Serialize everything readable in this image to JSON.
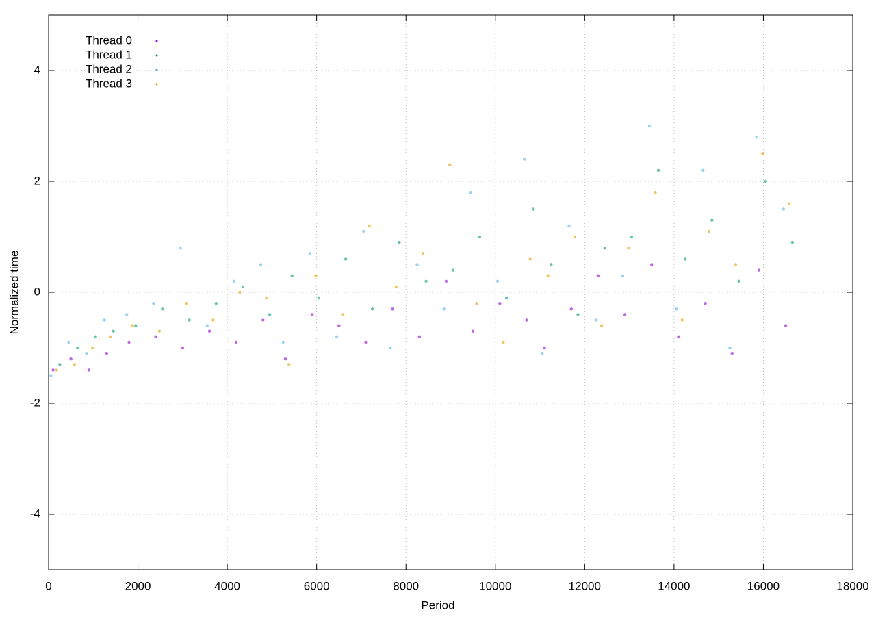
{
  "chart_data": {
    "type": "scatter",
    "x_label": "Period",
    "y_label": "Normalized time",
    "xlim": [
      0,
      18000
    ],
    "xticks": [
      0,
      2000,
      4000,
      6000,
      8000,
      10000,
      12000,
      14000,
      16000,
      18000
    ],
    "ylim": [
      -5,
      5
    ],
    "yticks": [
      -4,
      -2,
      0,
      2,
      4
    ],
    "grid": true,
    "legend": "top-left",
    "series": [
      {
        "name": "Thread 0",
        "color": "#9400d3",
        "x": [
          100,
          500,
          900,
          1300,
          1800,
          2400,
          3000,
          3600,
          4200,
          4800,
          5300,
          5900,
          6500,
          7100,
          7700,
          8300,
          8900,
          9500,
          10100,
          10700,
          11100,
          11700,
          12300,
          12900,
          13500,
          14100,
          14700,
          15300,
          15900,
          16500
        ],
        "values": [
          -1.4,
          -1.2,
          -1.4,
          -1.1,
          -0.9,
          -0.8,
          -1.0,
          -0.7,
          -0.9,
          -0.5,
          -1.2,
          -0.4,
          -0.6,
          -0.9,
          -0.3,
          -0.8,
          0.2,
          -0.7,
          -0.2,
          -0.5,
          -1.0,
          -0.3,
          0.3,
          -0.4,
          0.5,
          -0.8,
          -0.2,
          -1.1,
          0.4,
          -0.6
        ]
      },
      {
        "name": "Thread 1",
        "color": "#009e73",
        "x": [
          250,
          650,
          1050,
          1450,
          1950,
          2550,
          3150,
          3750,
          4350,
          4950,
          5450,
          6050,
          6650,
          7250,
          7850,
          8450,
          9050,
          9650,
          10250,
          10850,
          11250,
          11850,
          12450,
          13050,
          13650,
          14250,
          14850,
          15450,
          16050,
          16650
        ],
        "values": [
          -1.3,
          -1.0,
          -0.8,
          -0.7,
          -0.6,
          -0.3,
          -0.5,
          -0.2,
          0.1,
          -0.4,
          0.3,
          -0.1,
          0.6,
          -0.3,
          0.9,
          0.2,
          0.4,
          1.0,
          -0.1,
          1.5,
          0.5,
          -0.4,
          0.8,
          1.0,
          2.2,
          0.6,
          1.3,
          0.2,
          2.0,
          0.9
        ]
      },
      {
        "name": "Thread 2",
        "color": "#56b4e9",
        "x": [
          50,
          450,
          850,
          1250,
          1750,
          2350,
          2950,
          3550,
          4150,
          4750,
          5250,
          5850,
          6450,
          7050,
          7650,
          8250,
          8850,
          9450,
          10050,
          10650,
          11050,
          11650,
          12250,
          12850,
          13450,
          14050,
          14650,
          15250,
          15850,
          16450
        ],
        "values": [
          -1.5,
          -0.9,
          -1.1,
          -0.5,
          -0.4,
          -0.2,
          0.8,
          -0.6,
          0.2,
          0.5,
          -0.9,
          0.7,
          -0.8,
          1.1,
          -1.0,
          0.5,
          -0.3,
          1.8,
          0.2,
          2.4,
          -1.1,
          1.2,
          -0.5,
          0.3,
          3.0,
          -0.3,
          2.2,
          -1.0,
          2.8,
          1.5
        ]
      },
      {
        "name": "Thread 3",
        "color": "#e6a000",
        "x": [
          180,
          580,
          980,
          1380,
          1880,
          2480,
          3080,
          3680,
          4280,
          4880,
          5380,
          5980,
          6580,
          7180,
          7780,
          8380,
          8980,
          9580,
          10180,
          10780,
          11180,
          11780,
          12380,
          12980,
          13580,
          14180,
          14780,
          15380,
          15980,
          16580
        ],
        "values": [
          -1.4,
          -1.3,
          -1.0,
          -0.8,
          -0.6,
          -0.7,
          -0.2,
          -0.5,
          0.0,
          -0.1,
          -1.3,
          0.3,
          -0.4,
          1.2,
          0.1,
          0.7,
          2.3,
          -0.2,
          -0.9,
          0.6,
          0.3,
          1.0,
          -0.6,
          0.8,
          1.8,
          -0.5,
          1.1,
          0.5,
          2.5,
          1.6
        ]
      }
    ]
  }
}
